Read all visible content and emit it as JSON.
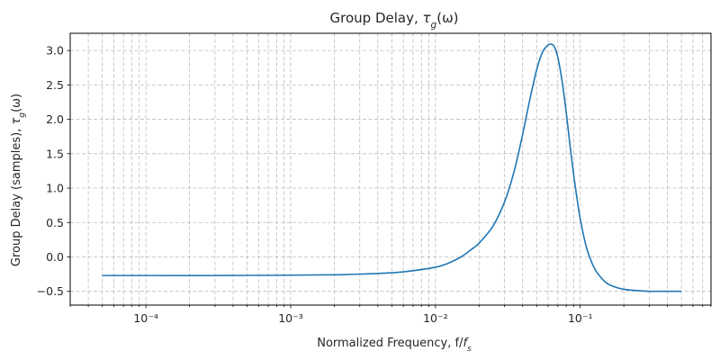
{
  "chart_data": {
    "type": "line",
    "title": "Group Delay, τ_g(ω)",
    "xlabel": "Normalized Frequency, f/f_s",
    "ylabel": "Group Delay (samples), τ_g(ω)",
    "x_scale": "log",
    "xlim": [
      3e-05,
      0.8
    ],
    "ylim": [
      -0.7,
      3.25
    ],
    "grid": true,
    "legend": "none",
    "x_ticks": [
      {
        "value": 0.0001,
        "label": "10⁻⁴"
      },
      {
        "value": 0.001,
        "label": "10⁻³"
      },
      {
        "value": 0.01,
        "label": "10⁻²"
      },
      {
        "value": 0.1,
        "label": "10⁻¹"
      }
    ],
    "y_ticks": [
      {
        "value": -0.5,
        "label": "−0.5"
      },
      {
        "value": 0.0,
        "label": "0.0"
      },
      {
        "value": 0.5,
        "label": "0.5"
      },
      {
        "value": 1.0,
        "label": "1.0"
      },
      {
        "value": 1.5,
        "label": "1.5"
      },
      {
        "value": 2.0,
        "label": "2.0"
      },
      {
        "value": 2.5,
        "label": "2.5"
      },
      {
        "value": 3.0,
        "label": "3.0"
      }
    ],
    "series": [
      {
        "color": "#1f77b4",
        "x": [
          5e-05,
          0.0001,
          0.0003,
          0.001,
          0.002,
          0.003,
          0.005,
          0.007,
          0.01,
          0.012,
          0.015,
          0.018,
          0.02,
          0.025,
          0.03,
          0.035,
          0.04,
          0.045,
          0.05,
          0.055,
          0.06,
          0.063,
          0.066,
          0.07,
          0.075,
          0.08,
          0.085,
          0.09,
          0.095,
          0.1,
          0.11,
          0.12,
          0.13,
          0.15,
          0.17,
          0.2,
          0.25,
          0.3,
          0.4,
          0.5
        ],
        "y": [
          -0.27,
          -0.27,
          -0.27,
          -0.265,
          -0.26,
          -0.25,
          -0.23,
          -0.2,
          -0.15,
          -0.1,
          0.0,
          0.12,
          0.2,
          0.45,
          0.8,
          1.25,
          1.78,
          2.3,
          2.72,
          2.98,
          3.08,
          3.09,
          3.06,
          2.9,
          2.55,
          2.1,
          1.62,
          1.2,
          0.85,
          0.55,
          0.15,
          -0.08,
          -0.22,
          -0.37,
          -0.43,
          -0.47,
          -0.49,
          -0.5,
          -0.5,
          -0.5
        ]
      }
    ]
  }
}
